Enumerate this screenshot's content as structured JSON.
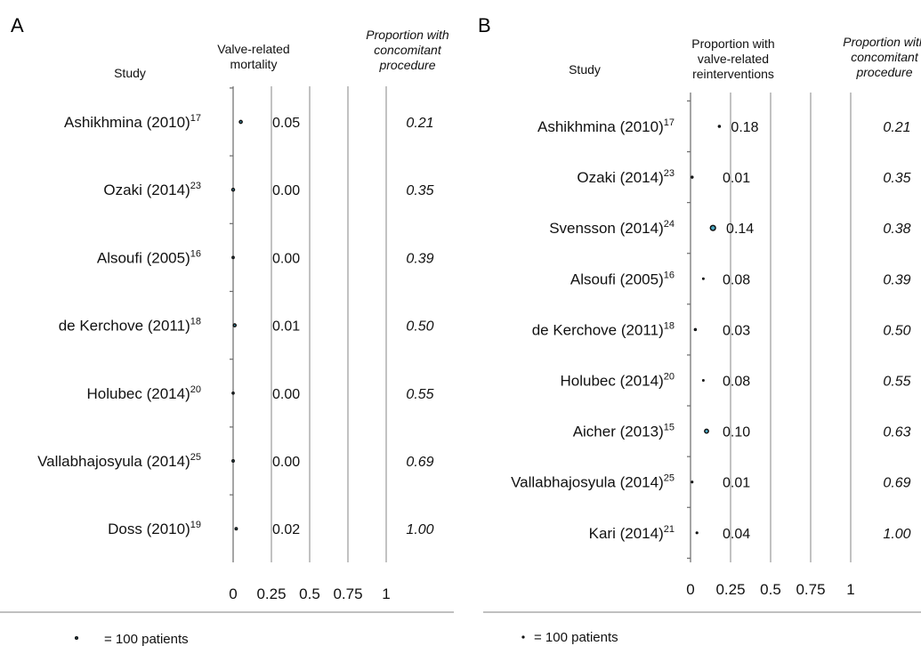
{
  "chart_data": [
    {
      "type": "scatter",
      "panel_label": "A",
      "study_header": "Study",
      "value_header": [
        "Valve-related",
        "mortality"
      ],
      "prop_header": [
        "Proportion with",
        "concomitant",
        "procedure"
      ],
      "xlim": [
        0,
        1
      ],
      "xticks": [
        "0",
        "0.25",
        "0.5",
        "0.75",
        "1"
      ],
      "rows": [
        {
          "study": "Ashikhmina (2010)",
          "ref": "17",
          "value": 0.05,
          "value_label": "0.05",
          "proportion": "0.21",
          "patients": 145
        },
        {
          "study": "Ozaki (2014)",
          "ref": "23",
          "value": 0.0,
          "value_label": "0.00",
          "proportion": "0.35",
          "patients": 130
        },
        {
          "study": "Alsoufi (2005)",
          "ref": "16",
          "value": 0.0,
          "value_label": "0.00",
          "proportion": "0.39",
          "patients": 75
        },
        {
          "study": "de Kerchove (2011)",
          "ref": "18",
          "value": 0.01,
          "value_label": "0.01",
          "proportion": "0.50",
          "patients": 140
        },
        {
          "study": "Holubec (2014)",
          "ref": "20",
          "value": 0.0,
          "value_label": "0.00",
          "proportion": "0.55",
          "patients": 70
        },
        {
          "study": "Vallabhajosyula (2014)",
          "ref": "25",
          "value": 0.0,
          "value_label": "0.00",
          "proportion": "0.69",
          "patients": 85
        },
        {
          "study": "Doss (2010)",
          "ref": "19",
          "value": 0.02,
          "value_label": "0.02",
          "proportion": "1.00",
          "patients": 85
        }
      ],
      "legend": "= 100 patients"
    },
    {
      "type": "scatter",
      "panel_label": "B",
      "study_header": "Study",
      "value_header": [
        "Proportion with",
        "valve-related",
        "reinterventions"
      ],
      "prop_header": [
        "Proportion with",
        "concomitant",
        "procedure"
      ],
      "xlim": [
        0,
        1
      ],
      "xticks": [
        "0",
        "0.25",
        "0.5",
        "0.75",
        "1"
      ],
      "rows": [
        {
          "study": "Ashikhmina (2010)",
          "ref": "17",
          "value": 0.18,
          "value_label": "0.18",
          "proportion": "0.21",
          "patients": 145
        },
        {
          "study": "Ozaki (2014)",
          "ref": "23",
          "value": 0.01,
          "value_label": "0.01",
          "proportion": "0.35",
          "patients": 130
        },
        {
          "study": "Svensson (2014)",
          "ref": "24",
          "value": 0.14,
          "value_label": "0.14",
          "proportion": "0.38",
          "patients": 1100
        },
        {
          "study": "Alsoufi (2005)",
          "ref": "16",
          "value": 0.08,
          "value_label": "0.08",
          "proportion": "0.39",
          "patients": 75
        },
        {
          "study": "de Kerchove (2011)",
          "ref": "18",
          "value": 0.03,
          "value_label": "0.03",
          "proportion": "0.50",
          "patients": 140
        },
        {
          "study": "Holubec (2014)",
          "ref": "20",
          "value": 0.08,
          "value_label": "0.08",
          "proportion": "0.55",
          "patients": 70
        },
        {
          "study": "Aicher (2013)",
          "ref": "15",
          "value": 0.1,
          "value_label": "0.10",
          "proportion": "0.63",
          "patients": 640
        },
        {
          "study": "Vallabhajosyula (2014)",
          "ref": "25",
          "value": 0.01,
          "value_label": "0.01",
          "proportion": "0.69",
          "patients": 85
        },
        {
          "study": "Kari (2014)",
          "ref": "21",
          "value": 0.04,
          "value_label": "0.04",
          "proportion": "1.00",
          "patients": 100
        }
      ],
      "legend": "= 100 patients"
    }
  ],
  "colors": {
    "marker": "#4aa9c4",
    "outline": "#111111",
    "grid": "#9a9a9a",
    "axis": "#6a6a6a"
  }
}
